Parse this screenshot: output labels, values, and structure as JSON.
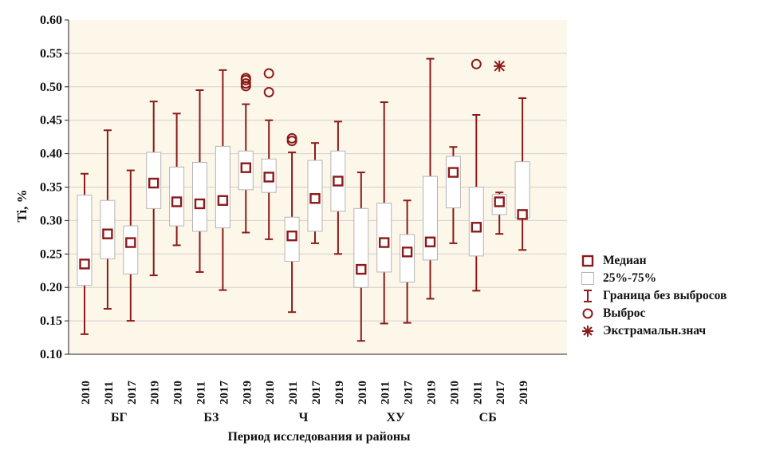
{
  "chart_data": {
    "type": "boxplot",
    "ylabel": "Ti, %",
    "xlabel": "Период исследования и районы",
    "ylim": [
      0.1,
      0.6
    ],
    "yticks": [
      "0.10",
      "0.15",
      "0.20",
      "0.25",
      "0.30",
      "0.35",
      "0.40",
      "0.45",
      "0.50",
      "0.55",
      "0.60"
    ],
    "grid": true,
    "legend_position": "right",
    "colors": {
      "box_element": "#8b1a1a",
      "box_border": "#b5b5b5",
      "plot_background": "#fdf7e9",
      "grid": "#d0d0d0"
    },
    "groups": [
      "БГ",
      "БЗ",
      "Ч",
      "ХУ",
      "СБ"
    ],
    "categories": [
      {
        "group": "БГ",
        "year": "2010",
        "whisker_low": 0.13,
        "q1": 0.203,
        "median": 0.235,
        "q3": 0.338,
        "whisker_high": 0.37,
        "outliers": [],
        "extremes": []
      },
      {
        "group": "БГ",
        "year": "2011",
        "whisker_low": 0.168,
        "q1": 0.243,
        "median": 0.28,
        "q3": 0.33,
        "whisker_high": 0.435,
        "outliers": [],
        "extremes": []
      },
      {
        "group": "БГ",
        "year": "2017",
        "whisker_low": 0.15,
        "q1": 0.22,
        "median": 0.267,
        "q3": 0.292,
        "whisker_high": 0.375,
        "outliers": [],
        "extremes": []
      },
      {
        "group": "БГ",
        "year": "2019",
        "whisker_low": 0.218,
        "q1": 0.318,
        "median": 0.356,
        "q3": 0.402,
        "whisker_high": 0.478,
        "outliers": [],
        "extremes": []
      },
      {
        "group": "БЗ",
        "year": "2010",
        "whisker_low": 0.263,
        "q1": 0.292,
        "median": 0.328,
        "q3": 0.38,
        "whisker_high": 0.46,
        "outliers": [],
        "extremes": []
      },
      {
        "group": "БЗ",
        "year": "2011",
        "whisker_low": 0.223,
        "q1": 0.284,
        "median": 0.325,
        "q3": 0.387,
        "whisker_high": 0.495,
        "outliers": [],
        "extremes": []
      },
      {
        "group": "БЗ",
        "year": "2017",
        "whisker_low": 0.196,
        "q1": 0.289,
        "median": 0.33,
        "q3": 0.411,
        "whisker_high": 0.525,
        "outliers": [],
        "extremes": []
      },
      {
        "group": "БЗ",
        "year": "2019",
        "whisker_low": 0.282,
        "q1": 0.346,
        "median": 0.379,
        "q3": 0.404,
        "whisker_high": 0.474,
        "outliers": [
          0.501,
          0.505,
          0.51,
          0.513
        ],
        "extremes": []
      },
      {
        "group": "Ч",
        "year": "2010",
        "whisker_low": 0.272,
        "q1": 0.342,
        "median": 0.365,
        "q3": 0.392,
        "whisker_high": 0.45,
        "outliers": [
          0.492,
          0.52
        ],
        "extremes": []
      },
      {
        "group": "Ч",
        "year": "2011",
        "whisker_low": 0.163,
        "q1": 0.239,
        "median": 0.277,
        "q3": 0.305,
        "whisker_high": 0.402,
        "outliers": [
          0.419,
          0.423
        ],
        "extremes": []
      },
      {
        "group": "Ч",
        "year": "2017",
        "whisker_low": 0.266,
        "q1": 0.284,
        "median": 0.333,
        "q3": 0.39,
        "whisker_high": 0.416,
        "outliers": [],
        "extremes": []
      },
      {
        "group": "Ч",
        "year": "2019",
        "whisker_low": 0.25,
        "q1": 0.314,
        "median": 0.359,
        "q3": 0.404,
        "whisker_high": 0.448,
        "outliers": [],
        "extremes": []
      },
      {
        "group": "ХУ",
        "year": "2010",
        "whisker_low": 0.12,
        "q1": 0.2,
        "median": 0.227,
        "q3": 0.318,
        "whisker_high": 0.372,
        "outliers": [],
        "extremes": []
      },
      {
        "group": "ХУ",
        "year": "2011",
        "whisker_low": 0.146,
        "q1": 0.223,
        "median": 0.267,
        "q3": 0.326,
        "whisker_high": 0.477,
        "outliers": [],
        "extremes": []
      },
      {
        "group": "ХУ",
        "year": "2017",
        "whisker_low": 0.147,
        "q1": 0.208,
        "median": 0.253,
        "q3": 0.279,
        "whisker_high": 0.33,
        "outliers": [],
        "extremes": []
      },
      {
        "group": "ХУ",
        "year": "2019",
        "whisker_low": 0.183,
        "q1": 0.241,
        "median": 0.268,
        "q3": 0.366,
        "whisker_high": 0.542,
        "outliers": [],
        "extremes": []
      },
      {
        "group": "СБ",
        "year": "2010",
        "whisker_low": 0.266,
        "q1": 0.319,
        "median": 0.372,
        "q3": 0.396,
        "whisker_high": 0.41,
        "outliers": [],
        "extremes": []
      },
      {
        "group": "СБ",
        "year": "2011",
        "whisker_low": 0.195,
        "q1": 0.247,
        "median": 0.29,
        "q3": 0.35,
        "whisker_high": 0.458,
        "outliers": [
          0.534
        ],
        "extremes": []
      },
      {
        "group": "СБ",
        "year": "2017",
        "whisker_low": 0.28,
        "q1": 0.309,
        "median": 0.328,
        "q3": 0.339,
        "whisker_high": 0.342,
        "outliers": [],
        "extremes": [
          0.531
        ]
      },
      {
        "group": "СБ",
        "year": "2019",
        "whisker_low": 0.256,
        "q1": 0.304,
        "median": 0.309,
        "q3": 0.388,
        "whisker_high": 0.483,
        "outliers": [],
        "extremes": []
      }
    ],
    "legend": [
      {
        "symbol": "median-square",
        "label": "Медиан"
      },
      {
        "symbol": "box",
        "label": "25%-75%"
      },
      {
        "symbol": "whisker",
        "label": "Граница без выбросов"
      },
      {
        "symbol": "outlier-circle",
        "label": "Выброс"
      },
      {
        "symbol": "extreme-star",
        "label": "Экстрамальн.знач"
      }
    ]
  }
}
